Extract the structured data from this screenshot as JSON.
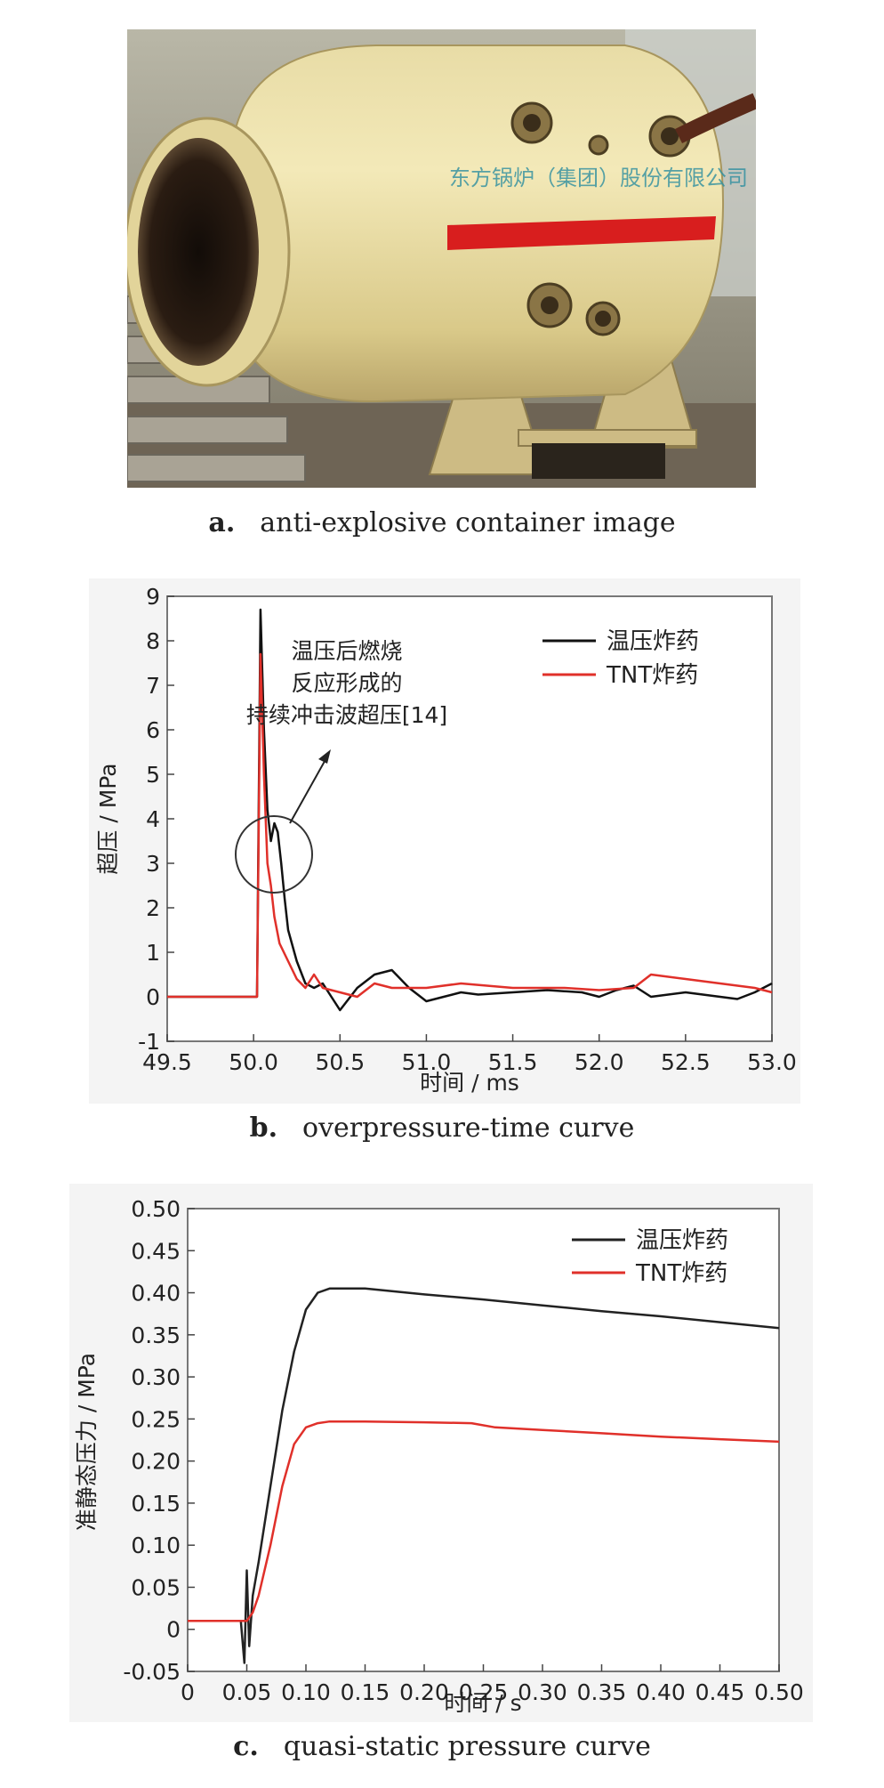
{
  "figure_a": {
    "caption_label": "a.",
    "caption_text": "anti-explosive container image",
    "nameplate_text": "东方锅炉（集团）股份有限公司"
  },
  "figure_b": {
    "caption_label": "b.",
    "caption_text": "overpressure-time curve",
    "annotation": [
      "温压后燃烧",
      "反应形成的",
      "持续冲击波超压[14]"
    ]
  },
  "figure_c": {
    "caption_label": "c.",
    "caption_text": "quasi-static pressure curve"
  },
  "chart_data": [
    {
      "type": "line",
      "ylabel": "超压 / MPa",
      "xlabel": "时间 / ms",
      "xlim": [
        49.5,
        53.0
      ],
      "ylim": [
        -1,
        9
      ],
      "xticks": [
        "49.5",
        "50.0",
        "50.5",
        "51.0",
        "51.5",
        "52.0",
        "52.5",
        "53.0"
      ],
      "yticks": [
        "-1",
        "0",
        "1",
        "2",
        "3",
        "4",
        "5",
        "6",
        "7",
        "8",
        "9"
      ],
      "legend_position": "top-right",
      "grid": false,
      "series": [
        {
          "name": "温压炸药",
          "color": "#111111",
          "x": [
            49.5,
            50.0,
            50.02,
            50.04,
            50.06,
            50.08,
            50.1,
            50.12,
            50.14,
            50.16,
            50.18,
            50.2,
            50.25,
            50.3,
            50.35,
            50.4,
            50.45,
            50.5,
            50.6,
            50.7,
            50.8,
            50.9,
            51.0,
            51.1,
            51.2,
            51.3,
            51.5,
            51.7,
            51.9,
            52.0,
            52.1,
            52.2,
            52.3,
            52.5,
            52.7,
            52.8,
            52.9,
            53.0
          ],
          "y": [
            0,
            0,
            0,
            8.7,
            6.0,
            4.2,
            3.5,
            3.9,
            3.7,
            3.0,
            2.2,
            1.5,
            0.8,
            0.3,
            0.2,
            0.3,
            0.0,
            -0.3,
            0.2,
            0.5,
            0.6,
            0.2,
            -0.1,
            0.0,
            0.1,
            0.05,
            0.1,
            0.15,
            0.1,
            0.0,
            0.15,
            0.25,
            0.0,
            0.1,
            0.0,
            -0.05,
            0.1,
            0.3
          ]
        },
        {
          "name": "TNT炸药",
          "color": "#e0302a",
          "x": [
            49.5,
            50.0,
            50.02,
            50.04,
            50.06,
            50.08,
            50.1,
            50.12,
            50.15,
            50.2,
            50.25,
            50.3,
            50.35,
            50.4,
            50.5,
            50.6,
            50.7,
            50.8,
            51.0,
            51.2,
            51.5,
            51.8,
            52.0,
            52.2,
            52.3,
            52.5,
            52.7,
            52.9,
            53.0
          ],
          "y": [
            0,
            0,
            0,
            7.7,
            5.0,
            3.0,
            2.5,
            1.8,
            1.2,
            0.8,
            0.4,
            0.2,
            0.5,
            0.2,
            0.1,
            0.0,
            0.3,
            0.2,
            0.2,
            0.3,
            0.2,
            0.2,
            0.15,
            0.2,
            0.5,
            0.4,
            0.3,
            0.2,
            0.1
          ]
        }
      ]
    },
    {
      "type": "line",
      "ylabel": "准静态压力 / MPa",
      "xlabel": "时间 / s",
      "xlim": [
        0,
        0.5
      ],
      "ylim": [
        -0.05,
        0.5
      ],
      "xticks": [
        "0",
        "0.05",
        "0.10",
        "0.15",
        "0.20",
        "0.25",
        "0.30",
        "0.35",
        "0.40",
        "0.45",
        "0.50"
      ],
      "yticks": [
        "-0.05",
        "0",
        "0.05",
        "0.10",
        "0.15",
        "0.20",
        "0.25",
        "0.30",
        "0.35",
        "0.40",
        "0.45",
        "0.50"
      ],
      "legend_position": "top-right",
      "grid": false,
      "series": [
        {
          "name": "温压炸药",
          "color": "#222222",
          "x": [
            0,
            0.045,
            0.048,
            0.05,
            0.052,
            0.055,
            0.06,
            0.07,
            0.08,
            0.09,
            0.1,
            0.11,
            0.12,
            0.15,
            0.2,
            0.25,
            0.3,
            0.35,
            0.4,
            0.45,
            0.5
          ],
          "y": [
            0.01,
            0.01,
            -0.04,
            0.07,
            -0.02,
            0.04,
            0.08,
            0.17,
            0.26,
            0.33,
            0.38,
            0.4,
            0.405,
            0.405,
            0.398,
            0.392,
            0.385,
            0.378,
            0.372,
            0.365,
            0.358
          ]
        },
        {
          "name": "TNT炸药",
          "color": "#e0302a",
          "x": [
            0,
            0.05,
            0.055,
            0.06,
            0.07,
            0.08,
            0.09,
            0.1,
            0.11,
            0.12,
            0.15,
            0.2,
            0.24,
            0.26,
            0.3,
            0.35,
            0.4,
            0.45,
            0.5
          ],
          "y": [
            0.01,
            0.01,
            0.02,
            0.04,
            0.1,
            0.17,
            0.22,
            0.24,
            0.245,
            0.247,
            0.247,
            0.246,
            0.245,
            0.24,
            0.237,
            0.233,
            0.229,
            0.226,
            0.223
          ]
        }
      ]
    }
  ]
}
